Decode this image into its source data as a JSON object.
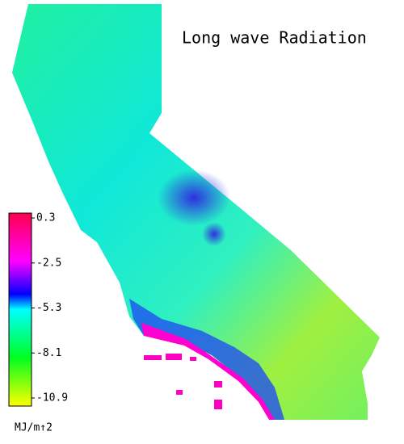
{
  "title": "Long wave Radiation",
  "colorbar": {
    "range": [
      -10.9,
      0.3
    ],
    "ticks": [
      0.3,
      -2.5,
      -5.3,
      -8.1,
      -10.9
    ],
    "unit": "MJ/m↑2"
  }
}
